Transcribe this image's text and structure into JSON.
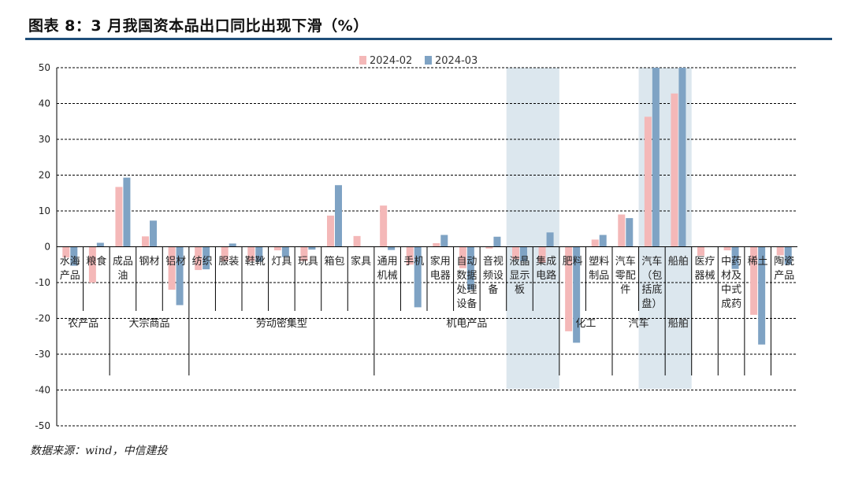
{
  "title": "图表 8：3 月我国资本品出口同比出现下滑（%）",
  "source": "数据来源：wind，中信建投",
  "chart_data": {
    "type": "bar",
    "ylim": [
      -50,
      50
    ],
    "yticks": [
      50,
      40,
      30,
      20,
      10,
      0,
      -10,
      -20,
      -30,
      -40,
      -50
    ],
    "grid": true,
    "legend_position": "top-center",
    "series": [
      {
        "name": "2024-02",
        "color": "#f4b8b8",
        "values": [
          -3,
          -10,
          16.7,
          2.9,
          -12,
          -6.5,
          -4,
          -4,
          -1,
          -4,
          8.7,
          3,
          11.5,
          -5,
          1,
          -6,
          -0.5,
          -3.5,
          -4.5,
          -23.6,
          2,
          9,
          36.3,
          42.8,
          -2.5,
          -1,
          -19,
          -2.4
        ]
      },
      {
        "name": "2024-03",
        "color": "#7fa3c4",
        "values": [
          -5.3,
          1.1,
          19.3,
          7.3,
          -16.3,
          -6.3,
          0.9,
          -4.2,
          -2.9,
          -0.8,
          17.2,
          0,
          -0.9,
          -16.9,
          3.3,
          -12,
          2.8,
          -4,
          4,
          -26.8,
          3.3,
          8,
          50,
          50,
          0,
          -6.2,
          -27.3,
          -5
        ]
      }
    ],
    "categories": [
      [
        "水海",
        "产品"
      ],
      [
        "粮食"
      ],
      [
        "成品",
        "油"
      ],
      [
        "钢材"
      ],
      [
        "铝材"
      ],
      [
        "纺织"
      ],
      [
        "服装"
      ],
      [
        "鞋靴"
      ],
      [
        "灯具"
      ],
      [
        "玩具"
      ],
      [
        "箱包"
      ],
      [
        "家具"
      ],
      [
        "通用",
        "机械"
      ],
      [
        "手机"
      ],
      [
        "家用",
        "电器"
      ],
      [
        "自动",
        "数据",
        "处理",
        "设备"
      ],
      [
        "音视",
        "频设",
        "备"
      ],
      [
        "液晶",
        "显示",
        "板"
      ],
      [
        "集成",
        "电路"
      ],
      [
        "肥料"
      ],
      [
        "塑料",
        "制品"
      ],
      [
        "汽车",
        "零配",
        "件"
      ],
      [
        "汽车",
        "（包",
        "括底",
        "盘）"
      ],
      [
        "船舶"
      ],
      [
        "医疗",
        "器械"
      ],
      [
        "中药",
        "材及",
        "中式",
        "成药"
      ],
      [
        "稀土"
      ],
      [
        "陶瓷",
        "产品"
      ]
    ],
    "groups": [
      {
        "label": "农产品",
        "first": 0,
        "last": 1
      },
      {
        "label": "大宗商品",
        "first": 2,
        "last": 4
      },
      {
        "label": "劳动密集型",
        "first": 5,
        "last": 11
      },
      {
        "label": "机电产品",
        "first": 12,
        "last": 18
      },
      {
        "label": "化工",
        "first": 19,
        "last": 20
      },
      {
        "label": "汽车",
        "first": 21,
        "last": 22
      },
      {
        "label": "船舶",
        "first": 23,
        "last": 23
      },
      {
        "label": "",
        "first": 24,
        "last": 24
      },
      {
        "label": "",
        "first": 25,
        "last": 25
      },
      {
        "label": "",
        "first": 26,
        "last": 26
      },
      {
        "label": "",
        "first": 27,
        "last": 27
      }
    ],
    "highlight_bands": [
      {
        "from": 17,
        "to": 18,
        "color": "#dce7ee"
      },
      {
        "from": 22,
        "to": 23,
        "color": "#dce7ee"
      }
    ]
  }
}
